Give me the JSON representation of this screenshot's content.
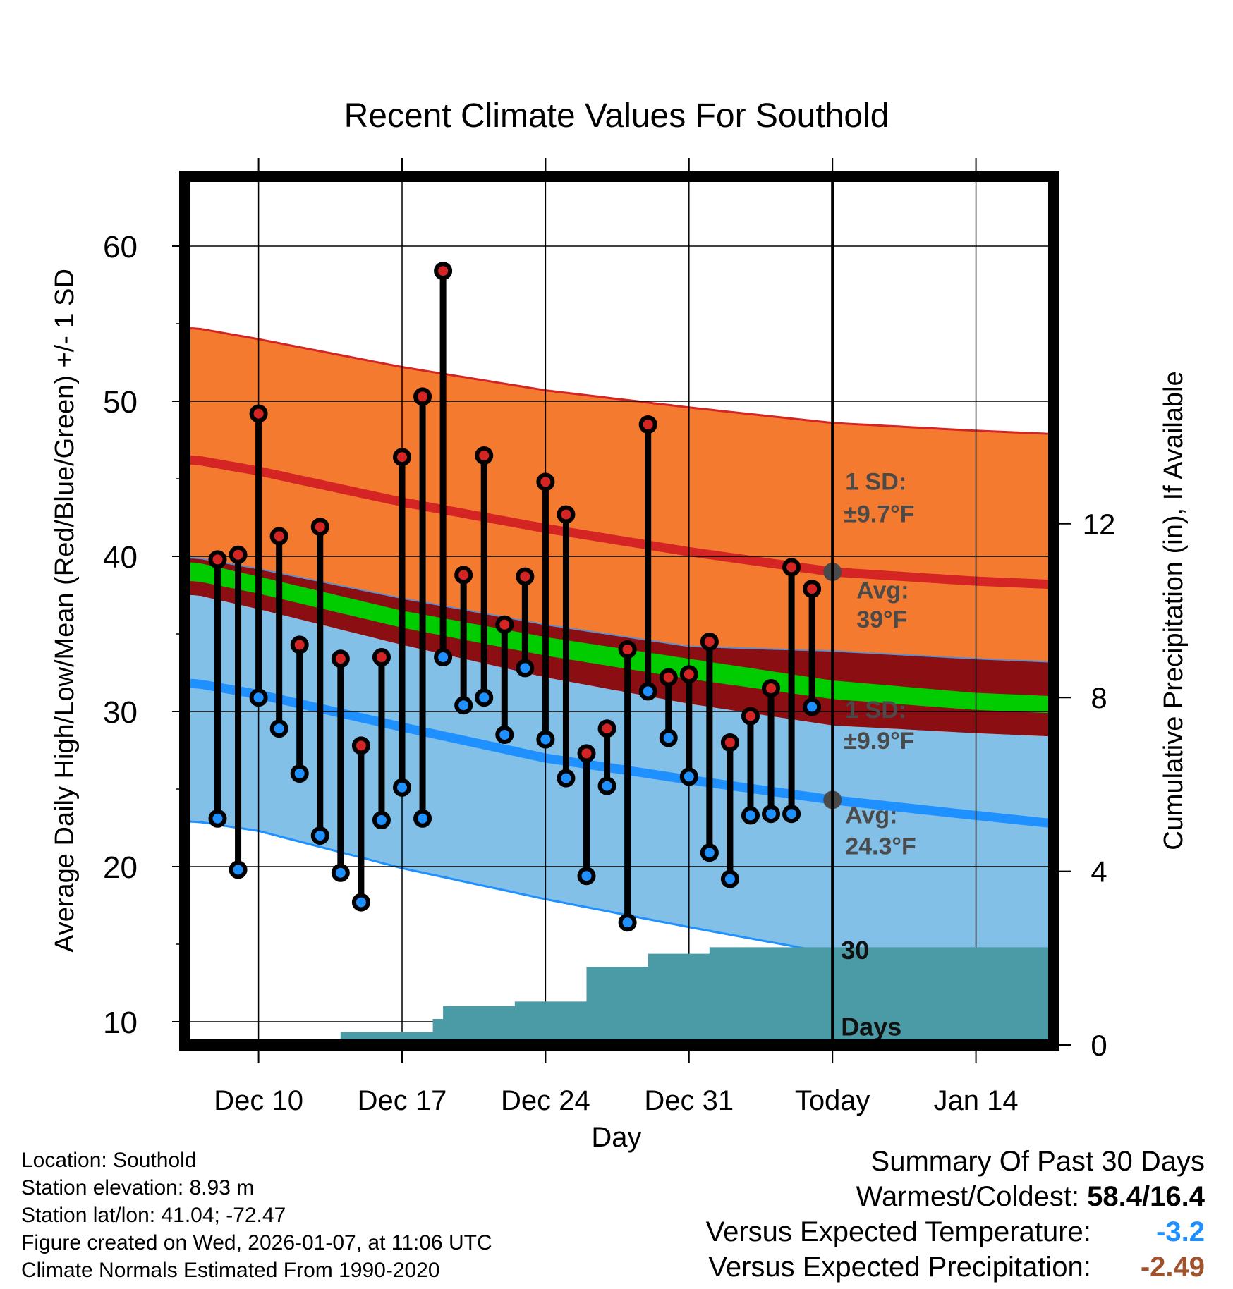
{
  "chart_data": {
    "type": "line",
    "title": "Recent Climate Values For Southold",
    "xlabel": "Day",
    "ylabel": "Average Daily High/Low/Mean (Red/Blue/Green) +/- 1 SD",
    "y2label": "Cumulative Precipitation (in), If Available",
    "ylim": [
      8.5,
      64.5
    ],
    "y2lim": [
      0,
      20
    ],
    "xlim": [
      -3.6,
      38.8
    ],
    "yticks": [
      "10",
      "20",
      "30",
      "40",
      "50",
      "60"
    ],
    "y2ticks": [
      "0",
      "4",
      "8",
      "12"
    ],
    "y2tick_values": [
      0,
      4,
      8,
      12
    ],
    "xticks": [
      {
        "label": "Dec 10",
        "day": 0
      },
      {
        "label": "Dec 17",
        "day": 7
      },
      {
        "label": "Dec 24",
        "day": 14
      },
      {
        "label": "Dec 31",
        "day": 21
      },
      {
        "label": "Today",
        "day": 28
      },
      {
        "label": "Jan 14",
        "day": 35
      }
    ],
    "today_day": 28,
    "normals": {
      "days": [
        -3,
        0,
        7,
        14,
        21,
        28,
        35,
        38.6
      ],
      "high_plus_sd": [
        54.7,
        54.0,
        52.2,
        50.7,
        49.6,
        48.6,
        48.1,
        47.9
      ],
      "high_avg": [
        46.2,
        45.5,
        43.5,
        41.8,
        40.3,
        39.0,
        38.4,
        38.2
      ],
      "high_minus_sd": [
        39.9,
        39.2,
        37.3,
        35.6,
        34.2,
        33.9,
        33.4,
        33.2
      ],
      "mean_upper": [
        39.6,
        38.7,
        36.5,
        34.8,
        33.4,
        32.0,
        31.2,
        31.0
      ],
      "mean_lower": [
        38.4,
        37.6,
        35.4,
        33.6,
        32.1,
        30.8,
        30.1,
        29.9
      ],
      "low_plus_sd": [
        37.5,
        36.6,
        34.3,
        32.2,
        30.5,
        29.1,
        28.6,
        28.4
      ],
      "low_avg": [
        31.8,
        31.1,
        29.0,
        27.0,
        25.6,
        24.3,
        23.3,
        22.8
      ],
      "low_minus_sd": [
        22.9,
        22.3,
        19.9,
        17.9,
        16.1,
        14.4,
        13.1,
        12.7
      ],
      "colors": {
        "high_band": "#f47a30",
        "high_line": "#d42424",
        "overlap_band": "#8b0e12",
        "mean_band": "#00cc00",
        "low_band": "#82c0e8",
        "low_line": "#1e90ff",
        "precip": "#4a9ba5"
      }
    },
    "series": [
      {
        "name": "Daily High",
        "color": "#d42424",
        "x": [
          -2,
          -1,
          0,
          1,
          2,
          3,
          4,
          5,
          6,
          7,
          8,
          9,
          10,
          11,
          12,
          13,
          14,
          15,
          16,
          17,
          18,
          19,
          20,
          21,
          22,
          23,
          24,
          25,
          26,
          27
        ],
        "values": [
          39.8,
          40.1,
          49.2,
          41.3,
          34.3,
          41.9,
          33.4,
          27.8,
          33.5,
          46.4,
          50.3,
          58.4,
          38.8,
          46.5,
          35.6,
          38.7,
          44.8,
          42.7,
          27.3,
          28.9,
          34.0,
          48.5,
          32.2,
          32.4,
          34.5,
          28.0,
          29.7,
          31.5,
          39.3,
          37.9
        ]
      },
      {
        "name": "Daily Low",
        "color": "#1e90ff",
        "x": [
          -2,
          -1,
          0,
          1,
          2,
          3,
          4,
          5,
          6,
          7,
          8,
          9,
          10,
          11,
          12,
          13,
          14,
          15,
          16,
          17,
          18,
          19,
          20,
          21,
          22,
          23,
          24,
          25,
          26,
          27
        ],
        "values": [
          23.1,
          19.8,
          30.9,
          28.9,
          26.0,
          22.0,
          19.6,
          17.7,
          23.0,
          25.1,
          23.1,
          33.5,
          30.4,
          30.9,
          28.5,
          32.8,
          28.2,
          25.7,
          19.4,
          25.2,
          16.4,
          31.3,
          28.3,
          25.8,
          20.9,
          19.2,
          23.3,
          23.4,
          23.4,
          30.3
        ]
      }
    ],
    "precipitation": {
      "name": "Cumulative Precipitation",
      "x": [
        -2,
        3.3,
        3.6,
        4,
        5,
        6,
        7,
        8.2,
        8.5,
        9,
        10,
        11,
        12,
        12.5,
        13,
        14,
        15,
        16,
        17,
        18,
        19,
        20,
        21,
        22,
        23,
        24,
        25,
        26,
        27,
        28,
        35,
        38.6
      ],
      "values": [
        0,
        0,
        0.1,
        0.3,
        0.3,
        0.3,
        0.3,
        0.3,
        0.6,
        0.9,
        0.9,
        0.9,
        0.9,
        1.0,
        1.0,
        1.0,
        1.0,
        1.8,
        1.8,
        1.8,
        2.1,
        2.1,
        2.1,
        2.25,
        2.25,
        2.25,
        2.25,
        2.25,
        2.25,
        2.25,
        2.25,
        2.25
      ],
      "label_count": "30",
      "label_unit": "Days"
    },
    "annotations": {
      "high_sd_label": "1 SD:",
      "high_sd_value": "±9.7°F",
      "high_avg_label": "Avg:",
      "high_avg_value": "39°F",
      "low_sd_label": "1 SD:",
      "low_sd_value": "±9.9°F",
      "low_avg_label": "Avg:",
      "low_avg_value": "24.3°F",
      "high_avg_marker": 39.0,
      "low_avg_marker": 24.3
    }
  },
  "info": {
    "location": "Location: Southold",
    "elevation": "Station elevation: 8.93 m",
    "latlon": "Station lat/lon: 41.04; -72.47",
    "created": "Figure created on Wed, 2026-01-07, at 11:06 UTC",
    "normals": "Climate Normals Estimated From 1990-2020"
  },
  "summary": {
    "title": "Summary Of Past 30 Days",
    "warmest_coldest_label": "Warmest/Coldest:",
    "warmest_coldest_value": "58.4/16.4",
    "temp_label": "Versus Expected Temperature:",
    "temp_value": "-3.2",
    "temp_color": "#1e90ff",
    "precip_label": "Versus Expected Precipitation:",
    "precip_value": "-2.49",
    "precip_color": "#a0522d"
  }
}
